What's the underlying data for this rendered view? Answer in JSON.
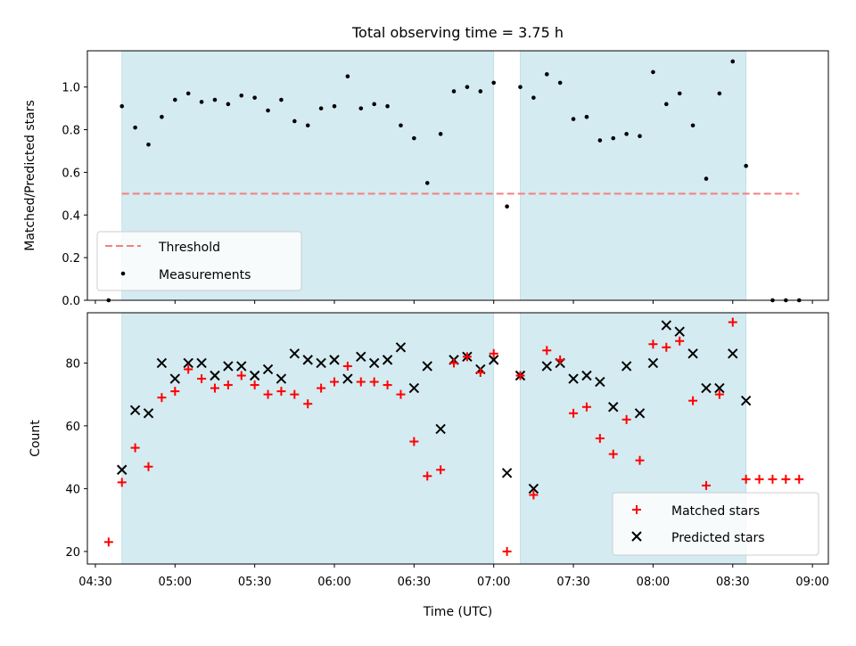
{
  "chart_data": [
    {
      "type": "scatter",
      "title": "Total observing time = 3.75 h",
      "xlabel": "",
      "ylabel": "Matched/Predicted stars",
      "xlim": [
        "04:27",
        "09:06"
      ],
      "ylim": [
        0,
        1.17
      ],
      "yticks": [
        "0.0",
        "0.2",
        "0.4",
        "0.6",
        "0.8",
        "1.0"
      ],
      "shaded_regions": [
        [
          "04:40",
          "07:00"
        ],
        [
          "07:10",
          "08:35"
        ]
      ],
      "shade_color": "#d4ebf1",
      "threshold": {
        "name": "Threshold",
        "value": 0.5,
        "x": [
          "04:40",
          "08:55"
        ],
        "color": "#f28080"
      },
      "series": [
        {
          "name": "Measurements",
          "color": "#000000",
          "x": [
            "04:35",
            "04:40",
            "04:45",
            "04:50",
            "04:55",
            "05:00",
            "05:05",
            "05:10",
            "05:15",
            "05:20",
            "05:25",
            "05:30",
            "05:35",
            "05:40",
            "05:45",
            "05:50",
            "05:55",
            "06:00",
            "06:05",
            "06:10",
            "06:15",
            "06:20",
            "06:25",
            "06:30",
            "06:35",
            "06:40",
            "06:45",
            "06:50",
            "06:55",
            "07:00",
            "07:05",
            "07:10",
            "07:15",
            "07:20",
            "07:25",
            "07:30",
            "07:35",
            "07:40",
            "07:45",
            "07:50",
            "07:55",
            "08:00",
            "08:05",
            "08:10",
            "08:15",
            "08:20",
            "08:25",
            "08:30",
            "08:35",
            "08:45",
            "08:50",
            "08:55"
          ],
          "y": [
            0.0,
            0.91,
            0.81,
            0.73,
            0.86,
            0.94,
            0.97,
            0.93,
            0.94,
            0.92,
            0.96,
            0.95,
            0.89,
            0.94,
            0.84,
            0.82,
            0.9,
            0.91,
            1.05,
            0.9,
            0.92,
            0.91,
            0.82,
            0.76,
            0.55,
            0.78,
            0.98,
            1.0,
            0.98,
            1.02,
            0.44,
            1.0,
            0.95,
            1.06,
            1.02,
            0.85,
            0.86,
            0.75,
            0.76,
            0.78,
            0.77,
            1.07,
            0.92,
            0.97,
            0.82,
            0.57,
            0.97,
            1.12,
            0.63,
            0.0,
            0.0,
            0.0
          ]
        }
      ],
      "legend": "lower-left"
    },
    {
      "type": "scatter",
      "title": "",
      "xlabel": "Time (UTC)",
      "ylabel": "Count",
      "xlim": [
        "04:27",
        "09:06"
      ],
      "ylim": [
        16,
        96
      ],
      "xticks": [
        "04:30",
        "05:00",
        "05:30",
        "06:00",
        "06:30",
        "07:00",
        "07:30",
        "08:00",
        "08:30",
        "09:00"
      ],
      "yticks": [
        "20",
        "40",
        "60",
        "80"
      ],
      "shaded_regions": [
        [
          "04:40",
          "07:00"
        ],
        [
          "07:10",
          "08:35"
        ]
      ],
      "series": [
        {
          "name": "Matched stars",
          "marker": "plus",
          "color": "#ff0000",
          "x": [
            "04:35",
            "04:40",
            "04:45",
            "04:50",
            "04:55",
            "05:00",
            "05:05",
            "05:10",
            "05:15",
            "05:20",
            "05:25",
            "05:30",
            "05:35",
            "05:40",
            "05:45",
            "05:50",
            "05:55",
            "06:00",
            "06:05",
            "06:10",
            "06:15",
            "06:20",
            "06:25",
            "06:30",
            "06:35",
            "06:40",
            "06:45",
            "06:50",
            "06:55",
            "07:00",
            "07:05",
            "07:10",
            "07:15",
            "07:20",
            "07:25",
            "07:30",
            "07:35",
            "07:40",
            "07:45",
            "07:50",
            "07:55",
            "08:00",
            "08:05",
            "08:10",
            "08:15",
            "08:20",
            "08:25",
            "08:30",
            "08:35",
            "08:40",
            "08:45",
            "08:50",
            "08:55"
          ],
          "y": [
            23,
            42,
            53,
            47,
            69,
            71,
            78,
            75,
            72,
            73,
            76,
            73,
            70,
            71,
            70,
            67,
            72,
            74,
            79,
            74,
            74,
            73,
            70,
            55,
            44,
            46,
            80,
            82,
            77,
            83,
            20,
            76,
            38,
            84,
            81,
            64,
            66,
            56,
            51,
            62,
            49,
            86,
            85,
            87,
            68,
            41,
            70,
            93,
            43,
            43,
            43,
            43,
            43
          ]
        },
        {
          "name": "Predicted stars",
          "marker": "x",
          "color": "#000000",
          "x": [
            "04:40",
            "04:45",
            "04:50",
            "04:55",
            "05:00",
            "05:05",
            "05:10",
            "05:15",
            "05:20",
            "05:25",
            "05:30",
            "05:35",
            "05:40",
            "05:45",
            "05:50",
            "05:55",
            "06:00",
            "06:05",
            "06:10",
            "06:15",
            "06:20",
            "06:25",
            "06:30",
            "06:35",
            "06:40",
            "06:45",
            "06:50",
            "06:55",
            "07:00",
            "07:05",
            "07:10",
            "07:15",
            "07:20",
            "07:25",
            "07:30",
            "07:35",
            "07:40",
            "07:45",
            "07:50",
            "07:55",
            "08:00",
            "08:05",
            "08:10",
            "08:15",
            "08:20",
            "08:25",
            "08:30",
            "08:35"
          ],
          "y": [
            46,
            65,
            64,
            80,
            75,
            80,
            80,
            76,
            79,
            79,
            76,
            78,
            75,
            83,
            81,
            80,
            81,
            75,
            82,
            80,
            81,
            85,
            72,
            79,
            59,
            81,
            82,
            78,
            81,
            45,
            76,
            40,
            79,
            80,
            75,
            76,
            74,
            66,
            79,
            64,
            80,
            92,
            90,
            83,
            72,
            72,
            83,
            68
          ]
        }
      ],
      "legend": "lower-right"
    }
  ]
}
